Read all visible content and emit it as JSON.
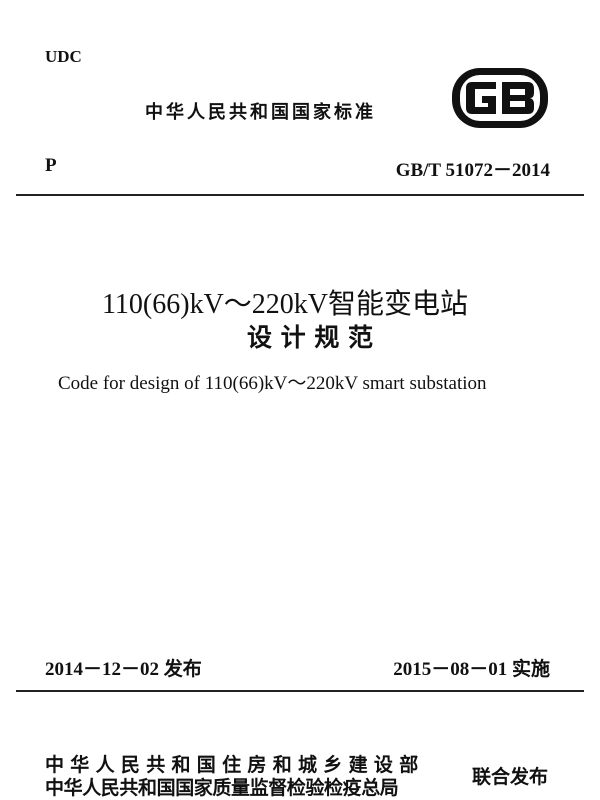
{
  "header": {
    "udc": "UDC",
    "national_standard": "中华人民共和国国家标准",
    "logo_text": "GB",
    "category": "P",
    "standard_number": "GB/T 51072－2014"
  },
  "title": {
    "line1": "110(66)kV～220kV智能变电站",
    "line2": "设 计 规 范",
    "english": "Code for design of 110(66)kV～220kV smart substation"
  },
  "dates": {
    "issue": "2014－12－02 发布",
    "implement": "2015－08－01 实施"
  },
  "publishers": {
    "line1": "中华人民共和国住房和城乡建设部",
    "line2": "中华人民共和国国家质量监督检验检疫总局",
    "joint": "联合发布"
  }
}
